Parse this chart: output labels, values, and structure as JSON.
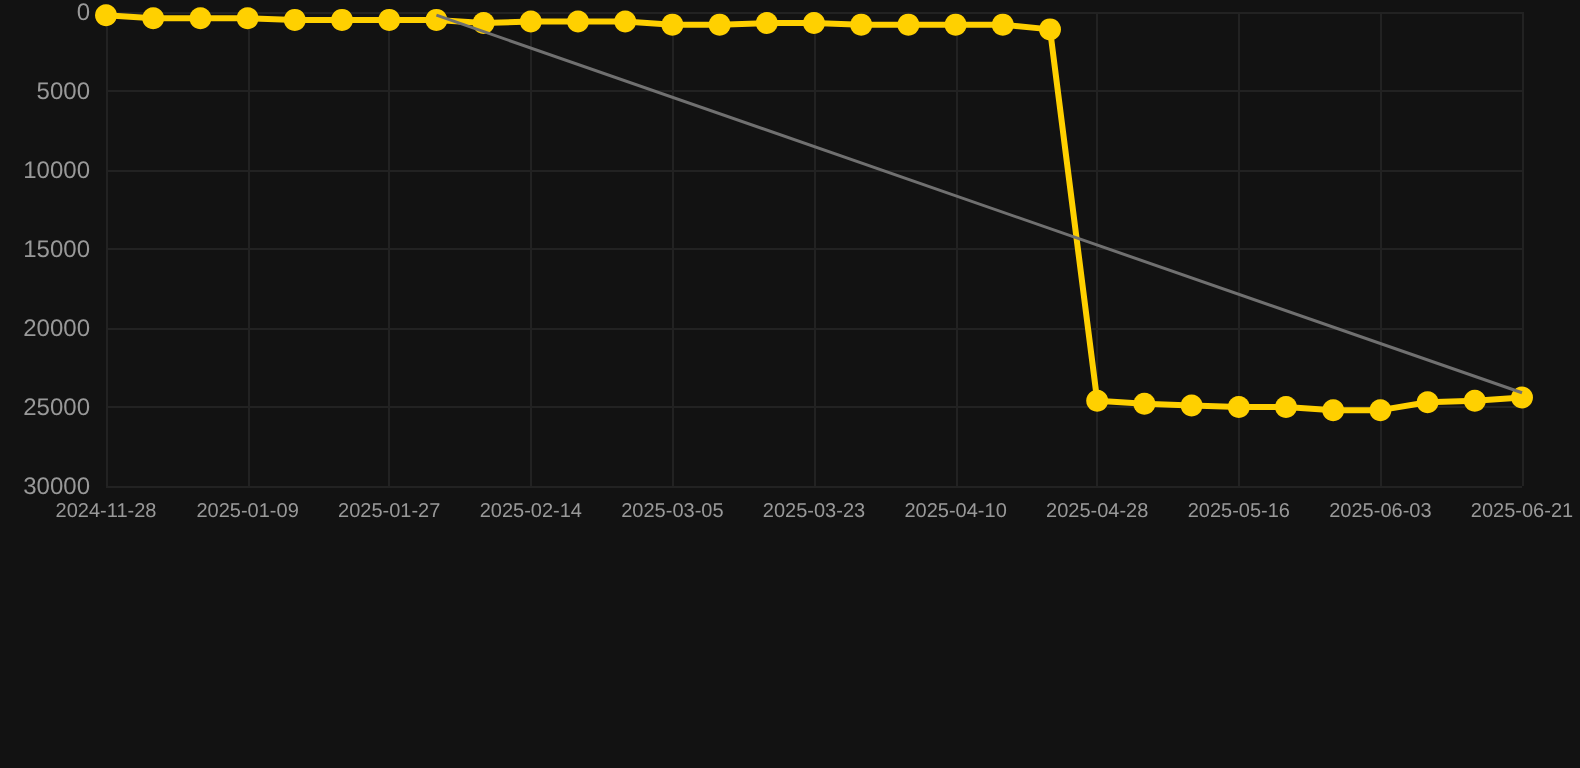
{
  "chart_data": {
    "type": "line",
    "categories": [
      "2024-11-28",
      null,
      null,
      "2025-01-09",
      null,
      null,
      "2025-01-27",
      null,
      null,
      "2025-02-14",
      null,
      null,
      "2025-03-05",
      null,
      null,
      "2025-03-23",
      null,
      null,
      "2025-04-10",
      null,
      null,
      "2025-04-28",
      null,
      null,
      "2025-05-16",
      null,
      null,
      "2025-06-03",
      null,
      null,
      "2025-06-21"
    ],
    "series": [
      {
        "color": "#ffd000",
        "marker": "circle",
        "values": [
          200,
          400,
          400,
          400,
          500,
          500,
          500,
          500,
          700,
          600,
          600,
          600,
          800,
          800,
          700,
          700,
          800,
          800,
          800,
          800,
          1100,
          24600,
          24800,
          24900,
          25000,
          25000,
          25200,
          25200,
          24700,
          24600,
          24400
        ]
      },
      {
        "color": "#707070",
        "marker": "none",
        "values": [
          null,
          null,
          null,
          null,
          null,
          null,
          null,
          200,
          null,
          null,
          null,
          null,
          null,
          null,
          null,
          null,
          null,
          null,
          null,
          null,
          null,
          null,
          null,
          null,
          null,
          null,
          null,
          null,
          null,
          null,
          24100
        ]
      }
    ],
    "ylim": [
      30000,
      0
    ],
    "yticks": [
      0,
      5000,
      10000,
      15000,
      20000,
      25000,
      30000
    ],
    "grid": true
  }
}
